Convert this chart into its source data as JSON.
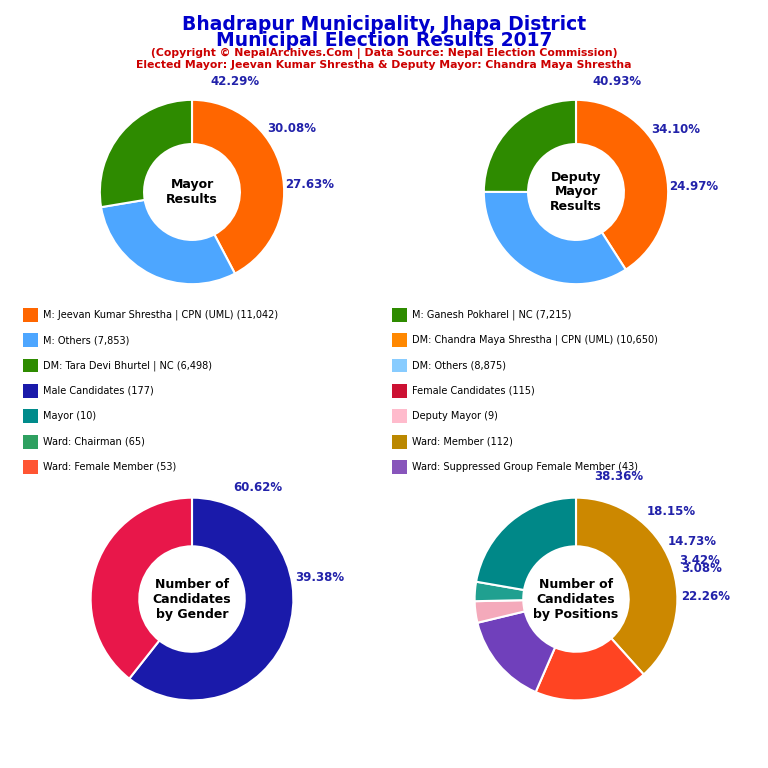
{
  "title_line1": "Bhadrapur Municipality, Jhapa District",
  "title_line2": "Municipal Election Results 2017",
  "subtitle1": "(Copyright © NepalArchives.Com | Data Source: Nepal Election Commission)",
  "subtitle2": "Elected Mayor: Jeevan Kumar Shrestha & Deputy Mayor: Chandra Maya Shrestha",
  "mayor_values": [
    42.29,
    30.08,
    27.63
  ],
  "mayor_colors": [
    "#FF6600",
    "#4DA6FF",
    "#2E8B00"
  ],
  "mayor_labels": [
    "42.29%",
    "30.08%",
    "27.63%"
  ],
  "deputy_values": [
    40.93,
    34.1,
    24.97
  ],
  "deputy_colors": [
    "#FF6600",
    "#4DA6FF",
    "#2E8B00"
  ],
  "deputy_labels": [
    "40.93%",
    "34.10%",
    "24.97%"
  ],
  "gender_values": [
    60.62,
    39.38
  ],
  "gender_colors": [
    "#1A1AAA",
    "#E8174A"
  ],
  "gender_labels": [
    "60.62%",
    "39.38%"
  ],
  "positions_values": [
    38.36,
    18.15,
    14.73,
    3.42,
    3.08,
    22.26
  ],
  "positions_colors": [
    "#CC8800",
    "#FF4422",
    "#7040BB",
    "#F4AABB",
    "#20A090",
    "#008888"
  ],
  "positions_labels": [
    "38.36%",
    "18.15%",
    "14.73%",
    "3.42%",
    "3.08%",
    "22.26%"
  ],
  "legend_left": [
    {
      "label": "M: Jeevan Kumar Shrestha | CPN (UML) (11,042)",
      "color": "#FF6600"
    },
    {
      "label": "M: Others (7,853)",
      "color": "#4DA6FF"
    },
    {
      "label": "DM: Tara Devi Bhurtel | NC (6,498)",
      "color": "#2E8B00"
    },
    {
      "label": "Male Candidates (177)",
      "color": "#1A1AAA"
    },
    {
      "label": "Mayor (10)",
      "color": "#008B8B"
    },
    {
      "label": "Ward: Chairman (65)",
      "color": "#2EA060"
    },
    {
      "label": "Ward: Female Member (53)",
      "color": "#FF5533"
    }
  ],
  "legend_right": [
    {
      "label": "M: Ganesh Pokharel | NC (7,215)",
      "color": "#2E8B00"
    },
    {
      "label": "DM: Chandra Maya Shrestha | CPN (UML) (10,650)",
      "color": "#FF8800"
    },
    {
      "label": "DM: Others (8,875)",
      "color": "#88CCFF"
    },
    {
      "label": "Female Candidates (115)",
      "color": "#CC1133"
    },
    {
      "label": "Deputy Mayor (9)",
      "color": "#FFBBCC"
    },
    {
      "label": "Ward: Member (112)",
      "color": "#BB8800"
    },
    {
      "label": "Ward: Suppressed Group Female Member (43)",
      "color": "#8855BB"
    }
  ]
}
